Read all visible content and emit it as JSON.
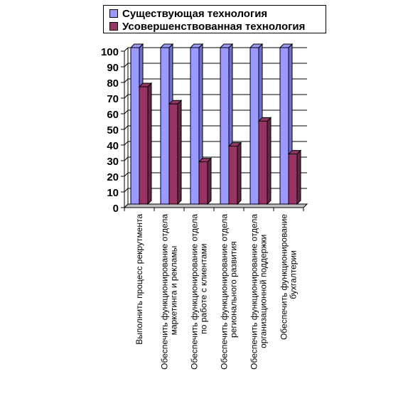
{
  "colors": {
    "existing": "#9999ff",
    "existing_side": "#6e6ed8",
    "improved": "#993366",
    "improved_side": "#6b2347",
    "wall_grid": "#000000",
    "floor": "#c0c0c0"
  },
  "chart_data": {
    "type": "bar",
    "title": "",
    "xlabel": "",
    "ylabel": "",
    "ylim": [
      0,
      100
    ],
    "yticks": [
      0,
      10,
      20,
      30,
      40,
      50,
      60,
      70,
      80,
      90,
      100
    ],
    "grid": true,
    "legend_position": "top",
    "categories": [
      [
        "Выполнить процесс рекрутмента"
      ],
      [
        "Обеспечить функционирование отдела",
        "маркетинга и рекламы"
      ],
      [
        "Обеспечить функционирование отдела",
        "по работе с клиентами"
      ],
      [
        "Обеспечить функционирование отдела",
        "регионального развития"
      ],
      [
        "Обеспечить функционирование отдела",
        "организационной поддержки"
      ],
      [
        "Обеспечить функционирование",
        "бухгалтерии"
      ]
    ],
    "series": [
      {
        "name": "Существующая технология",
        "values": [
          100,
          100,
          100,
          100,
          100,
          100
        ]
      },
      {
        "name": "Усовершенствованная технология",
        "values": [
          75,
          64,
          27,
          37,
          53,
          32
        ]
      }
    ]
  }
}
